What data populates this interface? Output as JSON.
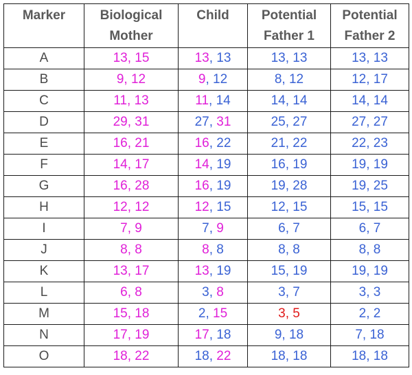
{
  "colors": {
    "mother": "#e020d8",
    "father": "#3a62d4",
    "mismatch": "#e01a1a",
    "header_text": "#5a5a5a",
    "marker_text": "#4a4a4a"
  },
  "headers": {
    "marker": "Marker",
    "mother_line1": "Biological",
    "mother_line2": "Mother",
    "child": "Child",
    "father1_line1": "Potential",
    "father1_line2": "Father 1",
    "father2_line1": "Potential",
    "father2_line2": "Father 2"
  },
  "rows": [
    {
      "marker": "A",
      "mother": "13, 15",
      "child_a": "13",
      "child_a_src": "m",
      "child_b": "13",
      "child_b_src": "f",
      "father1": "13, 13",
      "father1_color": "f",
      "father2": "13, 13"
    },
    {
      "marker": "B",
      "mother": "9, 12",
      "child_a": "9",
      "child_a_src": "m",
      "child_b": "12",
      "child_b_src": "f",
      "father1": "8, 12",
      "father1_color": "f",
      "father2": "12, 17"
    },
    {
      "marker": "C",
      "mother": "11, 13",
      "child_a": "11",
      "child_a_src": "m",
      "child_b": "14",
      "child_b_src": "f",
      "father1": "14, 14",
      "father1_color": "f",
      "father2": "14, 14"
    },
    {
      "marker": "D",
      "mother": "29, 31",
      "child_a": "27",
      "child_a_src": "f",
      "child_b": "31",
      "child_b_src": "m",
      "father1": "25, 27",
      "father1_color": "f",
      "father2": "27, 27"
    },
    {
      "marker": "E",
      "mother": "16, 21",
      "child_a": "16",
      "child_a_src": "m",
      "child_b": "22",
      "child_b_src": "f",
      "father1": "21, 22",
      "father1_color": "f",
      "father2": "22, 23"
    },
    {
      "marker": "F",
      "mother": "14, 17",
      "child_a": "14",
      "child_a_src": "m",
      "child_b": "19",
      "child_b_src": "f",
      "father1": "16, 19",
      "father1_color": "f",
      "father2": "19, 19"
    },
    {
      "marker": "G",
      "mother": "16, 28",
      "child_a": "16",
      "child_a_src": "m",
      "child_b": "19",
      "child_b_src": "f",
      "father1": "19, 28",
      "father1_color": "f",
      "father2": "19, 25"
    },
    {
      "marker": "H",
      "mother": "12, 12",
      "child_a": "12",
      "child_a_src": "m",
      "child_b": "15",
      "child_b_src": "f",
      "father1": "12, 15",
      "father1_color": "f",
      "father2": "15, 15"
    },
    {
      "marker": "I",
      "mother": "7, 9",
      "child_a": "7",
      "child_a_src": "f",
      "child_b": "9",
      "child_b_src": "m",
      "father1": "6, 7",
      "father1_color": "f",
      "father2": "6, 7"
    },
    {
      "marker": "J",
      "mother": "8, 8",
      "child_a": "8",
      "child_a_src": "m",
      "child_b": "8",
      "child_b_src": "f",
      "father1": "8, 8",
      "father1_color": "f",
      "father2": "8, 8"
    },
    {
      "marker": "K",
      "mother": "13, 17",
      "child_a": "13",
      "child_a_src": "m",
      "child_b": "19",
      "child_b_src": "f",
      "father1": "15, 19",
      "father1_color": "f",
      "father2": "19, 19"
    },
    {
      "marker": "L",
      "mother": "6, 8",
      "child_a": "3",
      "child_a_src": "f",
      "child_b": "8",
      "child_b_src": "m",
      "father1": "3, 7",
      "father1_color": "f",
      "father2": "3, 3"
    },
    {
      "marker": "M",
      "mother": "15, 18",
      "child_a": "2",
      "child_a_src": "f",
      "child_b": "15",
      "child_b_src": "m",
      "father1": "3, 5",
      "father1_color": "r",
      "father2": "2, 2"
    },
    {
      "marker": "N",
      "mother": "17, 19",
      "child_a": "17",
      "child_a_src": "m",
      "child_b": "18",
      "child_b_src": "f",
      "father1": "9, 18",
      "father1_color": "f",
      "father2": "7, 18"
    },
    {
      "marker": "O",
      "mother": "18, 22",
      "child_a": "18",
      "child_a_src": "f",
      "child_b": "22",
      "child_b_src": "m",
      "father1": "18, 18",
      "father1_color": "f",
      "father2": "18, 18"
    }
  ]
}
